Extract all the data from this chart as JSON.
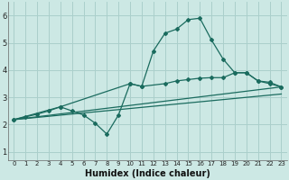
{
  "xlabel": "Humidex (Indice chaleur)",
  "bg_color": "#cce8e4",
  "grid_color": "#aacfcb",
  "line_color": "#1a6b5e",
  "xlim": [
    -0.5,
    23.5
  ],
  "ylim": [
    0.7,
    6.5
  ],
  "xticks": [
    0,
    1,
    2,
    3,
    4,
    5,
    6,
    7,
    8,
    9,
    10,
    11,
    12,
    13,
    14,
    15,
    16,
    17,
    18,
    19,
    20,
    21,
    22,
    23
  ],
  "yticks": [
    1,
    2,
    3,
    4,
    5,
    6
  ],
  "curve1_x": [
    0,
    1,
    2,
    3,
    4,
    5,
    6,
    7,
    8,
    9,
    10,
    11,
    12,
    13,
    14,
    15,
    16,
    17,
    18,
    19,
    20,
    21,
    22,
    23
  ],
  "curve1_y": [
    2.18,
    2.28,
    2.38,
    2.5,
    2.65,
    2.5,
    2.35,
    2.05,
    1.65,
    2.35,
    3.5,
    3.4,
    4.7,
    5.35,
    5.5,
    5.85,
    5.9,
    5.1,
    4.4,
    3.9,
    3.9,
    3.6,
    3.5,
    3.38
  ],
  "curve2_x": [
    0,
    4,
    10,
    11,
    13,
    14,
    15,
    16,
    17,
    18,
    19,
    20,
    21,
    22,
    23
  ],
  "curve2_y": [
    2.18,
    2.65,
    3.5,
    3.4,
    3.5,
    3.6,
    3.65,
    3.7,
    3.72,
    3.72,
    3.9,
    3.9,
    3.6,
    3.55,
    3.38
  ],
  "curve3_x": [
    0,
    23
  ],
  "curve3_y": [
    2.18,
    3.38
  ],
  "curve4_x": [
    0,
    23
  ],
  "curve4_y": [
    2.18,
    3.12
  ]
}
